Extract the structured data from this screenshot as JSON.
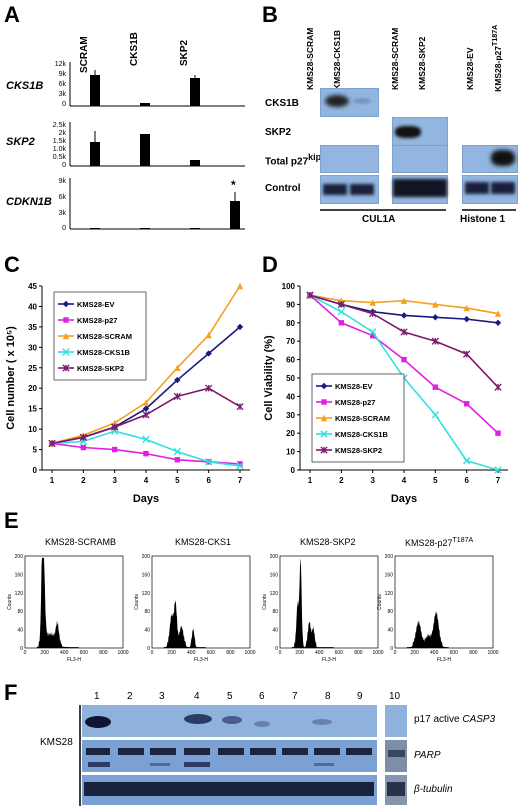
{
  "panels": {
    "A": "A",
    "B": "B",
    "C": "C",
    "D": "D",
    "E": "E",
    "F": "F"
  },
  "panelA": {
    "col_headers": [
      "SCRAM",
      "CKS1B",
      "SKP2"
    ],
    "rows": [
      {
        "gene": "CKS1B",
        "ticks": [
          "12k",
          "9k",
          "6k",
          "3k",
          "0"
        ]
      },
      {
        "gene": "SKP2",
        "ticks": [
          "2.5k",
          "2k",
          "1.5k",
          "1.0k",
          "0.5k",
          "0"
        ]
      },
      {
        "gene": "CDKN1B",
        "ticks": [
          "9k",
          "6k",
          "3k",
          "0"
        ]
      }
    ],
    "star": "*"
  },
  "panelB": {
    "lane_headers": [
      "KMS28-SCRAM",
      "KMS28-CKS1B",
      "KMS28-SCRAM",
      "KMS28-SKP2",
      "KMS28-EV",
      "KMS28-p27"
    ],
    "p27_sup": "T187A",
    "row_labels": [
      "CKS1B",
      "SKP2",
      "Total p27",
      "Control"
    ],
    "kip_sup": "kip1",
    "groups": [
      "CUL1A",
      "Histone 1"
    ]
  },
  "chart_data": [
    {
      "type": "line",
      "xlabel": "Days",
      "ylabel": "Cell number ( x 10⁵)",
      "x": [
        1,
        2,
        3,
        4,
        5,
        6,
        7
      ],
      "ylim": [
        0,
        45
      ],
      "yticks": [
        0,
        5,
        10,
        15,
        20,
        25,
        30,
        35,
        40,
        45
      ],
      "legend": "top-left",
      "series": [
        {
          "name": "KMS28-EV",
          "color": "#1a1a80",
          "marker": "diamond",
          "values": [
            6.5,
            8,
            10.5,
            15,
            22,
            28.5,
            35
          ]
        },
        {
          "name": "KMS28-p27",
          "color": "#e020e0",
          "marker": "square",
          "values": [
            6.5,
            5.5,
            5,
            4,
            2.5,
            2,
            1.5
          ]
        },
        {
          "name": "KMS28-SCRAM",
          "color": "#f5a020",
          "marker": "triangle",
          "values": [
            6.5,
            8.5,
            11.5,
            16.5,
            25,
            33,
            45
          ]
        },
        {
          "name": "KMS28-CKS1B",
          "color": "#30e0e0",
          "marker": "x",
          "values": [
            6.5,
            7,
            9.5,
            7.5,
            4.5,
            2,
            1
          ]
        },
        {
          "name": "KMS28-SKP2",
          "color": "#7a1a6e",
          "marker": "star",
          "values": [
            6.5,
            8,
            10.5,
            13.5,
            18,
            20,
            15.5
          ]
        }
      ]
    },
    {
      "type": "line",
      "xlabel": "Days",
      "ylabel": "Cell Viability (%)",
      "x": [
        1,
        2,
        3,
        4,
        5,
        6,
        7
      ],
      "ylim": [
        0,
        100
      ],
      "yticks": [
        0,
        10,
        20,
        30,
        40,
        50,
        60,
        70,
        80,
        90,
        100
      ],
      "legend": "bottom-left",
      "series": [
        {
          "name": "KMS28-EV",
          "color": "#1a1a80",
          "marker": "diamond",
          "values": [
            95,
            90,
            86,
            84,
            83,
            82,
            80
          ]
        },
        {
          "name": "KMS28-p27",
          "color": "#e020e0",
          "marker": "square",
          "values": [
            95,
            80,
            73,
            60,
            45,
            36,
            20
          ]
        },
        {
          "name": "KMS28-SCRAM",
          "color": "#f5a020",
          "marker": "triangle",
          "values": [
            95,
            92,
            91,
            92,
            90,
            88,
            85
          ]
        },
        {
          "name": "KMS28-CKS1B",
          "color": "#30e0e0",
          "marker": "x",
          "values": [
            95,
            86,
            75,
            50,
            30,
            5,
            0
          ]
        },
        {
          "name": "KMS28-SKP2",
          "color": "#7a1a6e",
          "marker": "star",
          "values": [
            95,
            90,
            85,
            75,
            70,
            63,
            45
          ]
        }
      ]
    }
  ],
  "panelE": {
    "titles": [
      "KMS28-SCRAMB",
      "KMS28-CKS1",
      "KMS28-SKP2",
      "KMS28-p27"
    ],
    "t187_sup": "T187A",
    "xlabel": "FL3-H",
    "ylabel": "Counts",
    "yticks": [
      "200",
      "160",
      "120",
      "80",
      "40",
      "0"
    ],
    "xticks": [
      "0",
      "200",
      "400",
      "600",
      "800",
      "1000"
    ]
  },
  "panelF": {
    "lanes": [
      "1",
      "2",
      "3",
      "4",
      "5",
      "6",
      "7",
      "8",
      "9",
      "10"
    ],
    "cell_line": "KMS28",
    "label_casp_prefix": "p17 active ",
    "label_casp_gene": "CASP3",
    "label_parp": "PARP",
    "label_tubulin": "β-tubulin"
  }
}
